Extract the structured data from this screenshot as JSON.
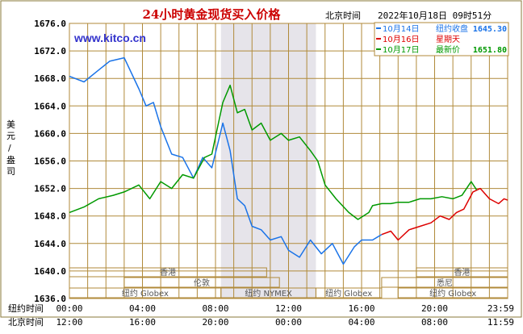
{
  "title": "24小时黄金现货买入价格",
  "datetime_label": "北京时间",
  "datetime_value": "2022年10月18日 09时51分",
  "watermark": "www.kitco.cn",
  "ylabel": "美元/盎司",
  "x_row1_label": "纽约时间",
  "x_row2_label": "北京时间",
  "x_ticks_ny": [
    "00:00",
    "04:00",
    "08:00",
    "12:00",
    "16:00",
    "20:00",
    "23:59"
  ],
  "x_ticks_bj": [
    "12:00",
    "16:00",
    "20:00",
    "00:00",
    "04:00",
    "08:00",
    "11:59"
  ],
  "legend": [
    {
      "date": "10月14日",
      "label": "纽约收盘",
      "value": "1645.30",
      "color": "#1a73e8"
    },
    {
      "date": "10月16日",
      "label": "星期天",
      "value": "",
      "color": "#dd0000"
    },
    {
      "date": "10月17日",
      "label": "最新价",
      "value": "1651.80",
      "color": "#009900"
    }
  ],
  "sessions": [
    {
      "name": "香港",
      "row": 1,
      "start": 0,
      "end": 10.8,
      "side": "left"
    },
    {
      "name": "伦敦",
      "row": 2,
      "start": 3,
      "end": 11.5,
      "side": "left"
    },
    {
      "name": "纽约 Globex",
      "row": 3,
      "start": 0,
      "end": 8.3,
      "side": "left"
    },
    {
      "name": "纽约 NYMEX",
      "row": 3,
      "start": 8.3,
      "end": 13.5,
      "side": "left"
    },
    {
      "name": "纽约 Globex",
      "row": 3,
      "start": 13.5,
      "end": 17.1,
      "side": "left"
    },
    {
      "name": "香港",
      "row": 1,
      "start": 19.0,
      "end": 24,
      "side": "right"
    },
    {
      "name": "悉尼",
      "row": 2,
      "start": 17.1,
      "end": 24,
      "side": "right"
    },
    {
      "name": "纽约 Globex",
      "row": 3,
      "start": 18.0,
      "end": 24,
      "side": "right"
    }
  ],
  "colors": {
    "grid": "#b08a3a",
    "frame": "#666666",
    "title": "#cc0000",
    "watermark": "#3333cc",
    "blue": "#1a73e8",
    "red": "#dd0000",
    "green": "#009900",
    "shade": "#e6e4ea"
  },
  "chart_data": {
    "type": "line",
    "title": "24小时黄金现货买入价格",
    "ylabel": "美元/盎司",
    "ylim": [
      1636,
      1676
    ],
    "yticks": [
      1636.0,
      1640.0,
      1644.0,
      1648.0,
      1652.0,
      1656.0,
      1660.0,
      1664.0,
      1668.0,
      1672.0,
      1676.0
    ],
    "xlim_ny_hours": [
      0,
      24
    ],
    "highlight_ny_hours": [
      8.3,
      13.5
    ],
    "series": [
      {
        "name": "10月14日",
        "color": "#1a73e8",
        "x": [
          0,
          0.8,
          1.5,
          2.2,
          3.0,
          3.8,
          4.2,
          4.6,
          5.0,
          5.6,
          6.2,
          6.8,
          7.3,
          7.8,
          8.4,
          8.8,
          9.2,
          9.6,
          10.0,
          10.5,
          11.0,
          11.6,
          12.0,
          12.6,
          13.2,
          13.8,
          14.4,
          15.0,
          15.6,
          16.0,
          16.6,
          17.1
        ],
        "y": [
          1668.3,
          1667.5,
          1669.0,
          1670.5,
          1671.0,
          1666.5,
          1664.0,
          1664.5,
          1661.0,
          1657.0,
          1656.5,
          1653.5,
          1656.5,
          1655.0,
          1661.5,
          1657.5,
          1650.5,
          1649.5,
          1646.5,
          1646.0,
          1644.5,
          1645.0,
          1643.0,
          1642.0,
          1644.5,
          1642.5,
          1644.0,
          1641.0,
          1643.5,
          1644.5,
          1644.5,
          1645.3
        ]
      },
      {
        "name": "10月16日",
        "color": "#dd0000",
        "x": [
          17.1,
          17.6,
          18.0,
          18.6,
          19.2,
          19.8,
          20.3,
          20.8,
          21.2,
          21.6,
          22.1,
          22.5,
          23.0,
          23.5,
          23.8,
          24.0
        ],
        "y": [
          1645.3,
          1645.8,
          1644.5,
          1646.0,
          1646.5,
          1647.0,
          1648.0,
          1647.5,
          1648.5,
          1649.0,
          1651.5,
          1652.0,
          1650.5,
          1649.8,
          1650.5,
          1650.3
        ]
      },
      {
        "name": "10月17日",
        "color": "#009900",
        "x": [
          0,
          0.8,
          1.6,
          2.4,
          3.0,
          3.8,
          4.4,
          5.0,
          5.6,
          6.2,
          6.8,
          7.4,
          7.8,
          8.4,
          8.8,
          9.2,
          9.6,
          10.0,
          10.5,
          11.0,
          11.6,
          12.0,
          12.6,
          13.2,
          13.6,
          14.0,
          14.6,
          15.3,
          15.8,
          16.4,
          16.6,
          17.1,
          17.6,
          18.0,
          18.6,
          19.2,
          19.8,
          20.4,
          21.0,
          21.5,
          22.0,
          22.3
        ],
        "y": [
          1648.5,
          1649.3,
          1650.5,
          1651.0,
          1651.5,
          1652.5,
          1650.5,
          1653.0,
          1652.0,
          1654.0,
          1653.5,
          1656.5,
          1657.0,
          1664.5,
          1667.0,
          1663.0,
          1663.5,
          1660.5,
          1661.5,
          1659.0,
          1660.0,
          1659.0,
          1659.5,
          1657.5,
          1656.0,
          1652.5,
          1650.5,
          1648.5,
          1647.5,
          1648.5,
          1649.5,
          1649.8,
          1649.8,
          1650.0,
          1650.0,
          1650.5,
          1650.5,
          1650.8,
          1650.5,
          1651.0,
          1653.0,
          1651.8
        ]
      }
    ]
  }
}
